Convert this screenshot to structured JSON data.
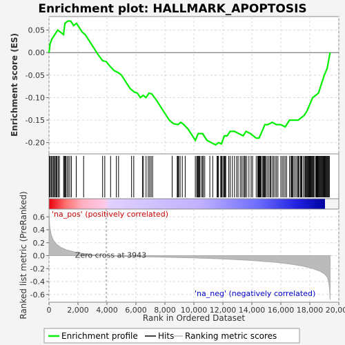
{
  "chart_data": {
    "type": "line",
    "title": "Enrichment plot: HALLMARK_APOPTOSIS",
    "xlabel": "Rank in Ordered Dataset",
    "es_ylabel": "Enrichment score (ES)",
    "metric_ylabel": "Ranked list metric (PreRanked)",
    "xlim": [
      0,
      20000
    ],
    "x_ticks": [
      0,
      2000,
      4000,
      6000,
      8000,
      10000,
      12000,
      14000,
      16000,
      18000,
      20000
    ],
    "x_tick_labels": [
      "0",
      "2,000",
      "4,000",
      "6,000",
      "8,000",
      "10,000",
      "12,000",
      "14,000",
      "16,000",
      "18,000",
      "20,000"
    ],
    "es_ylim": [
      -0.225,
      0.08
    ],
    "es_ticks": [
      0.05,
      0.0,
      -0.05,
      -0.1,
      -0.15,
      -0.2
    ],
    "es_tick_labels": [
      "0.05",
      "0.00",
      "-0.05",
      "-0.10",
      "-0.15",
      "-0.20"
    ],
    "metric_ylim": [
      -0.72,
      0.72
    ],
    "metric_ticks": [
      0.6,
      0.4,
      0.2,
      0.0,
      -0.2,
      -0.4,
      -0.6
    ],
    "metric_tick_labels": [
      "0.6",
      "0.4",
      "0.2",
      "0.0",
      "-0.2",
      "-0.4",
      "-0.6"
    ],
    "n_genes": 19400,
    "zero_cross": 3943,
    "zero_cross_label": "Zero cross at 3943",
    "pos_label": "'na_pos' (positively correlated)",
    "neg_label": "'na_neg' (negatively correlated)",
    "grid": true,
    "legend_position": "bottom",
    "legend": [
      "Enrichment profile",
      "Hits",
      "Ranking metric scores"
    ],
    "colors": {
      "es_line": "#00ee00",
      "hits": "#000000",
      "metric": "#bbbbbb",
      "pos_label": "#cc0000",
      "neg_label": "#0000cc"
    },
    "es_curve": {
      "x": [
        0,
        80,
        200,
        400,
        600,
        800,
        1000,
        1100,
        1300,
        1500,
        1700,
        1900,
        2100,
        2300,
        2500,
        2800,
        3100,
        3400,
        3700,
        3950,
        4200,
        4500,
        4800,
        5000,
        5300,
        5600,
        5900,
        6100,
        6300,
        6500,
        6700,
        6900,
        7100,
        7400,
        7700,
        8000,
        8300,
        8600,
        8900,
        9100,
        9300,
        9600,
        9900,
        10100,
        10300,
        10600,
        10900,
        11200,
        11500,
        11700,
        11900,
        12100,
        12300,
        12500,
        12800,
        13100,
        13400,
        13600,
        13900,
        14100,
        14300,
        14500,
        14700,
        14900,
        15100,
        15400,
        15700,
        16000,
        16300,
        16600,
        16800,
        17000,
        17200,
        17400,
        17600,
        17800,
        18000,
        18200,
        18400,
        18600,
        18800,
        19000,
        19200,
        19400
      ],
      "y": [
        0.0,
        0.02,
        0.03,
        0.04,
        0.05,
        0.045,
        0.04,
        0.065,
        0.07,
        0.07,
        0.06,
        0.065,
        0.055,
        0.045,
        0.04,
        0.025,
        0.01,
        -0.005,
        -0.018,
        -0.02,
        -0.03,
        -0.04,
        -0.045,
        -0.05,
        -0.065,
        -0.08,
        -0.088,
        -0.09,
        -0.1,
        -0.095,
        -0.1,
        -0.09,
        -0.092,
        -0.105,
        -0.12,
        -0.135,
        -0.15,
        -0.158,
        -0.16,
        -0.155,
        -0.16,
        -0.17,
        -0.185,
        -0.195,
        -0.18,
        -0.18,
        -0.195,
        -0.2,
        -0.205,
        -0.2,
        -0.203,
        -0.185,
        -0.185,
        -0.175,
        -0.175,
        -0.18,
        -0.185,
        -0.175,
        -0.18,
        -0.185,
        -0.19,
        -0.19,
        -0.175,
        -0.16,
        -0.16,
        -0.155,
        -0.16,
        -0.16,
        -0.165,
        -0.15,
        -0.15,
        -0.15,
        -0.15,
        -0.145,
        -0.14,
        -0.13,
        -0.115,
        -0.1,
        -0.095,
        -0.09,
        -0.07,
        -0.05,
        -0.035,
        0.0
      ]
    },
    "hits": [
      30,
      90,
      160,
      230,
      300,
      370,
      430,
      500,
      560,
      640,
      720,
      1010,
      1060,
      1110,
      1160,
      1250,
      1340,
      1440,
      1550,
      1880,
      2390,
      3700,
      3850,
      4250,
      4650,
      4800,
      5700,
      5850,
      6450,
      6520,
      6700,
      6850,
      6950,
      7050,
      7150,
      8500,
      8850,
      8900,
      8950,
      9050,
      9200,
      9400,
      10100,
      10200,
      10250,
      10300,
      10350,
      10400,
      10500,
      10600,
      10650,
      10750,
      11100,
      11300,
      11600,
      11650,
      11700,
      11850,
      11900,
      11950,
      12050,
      12100,
      12150,
      12200,
      12400,
      12500,
      12650,
      12800,
      12950,
      13050,
      13200,
      13300,
      13400,
      13500,
      13550,
      13650,
      13800,
      13950,
      14050,
      14300,
      14400,
      14450,
      14500,
      14550,
      14600,
      14650,
      14750,
      14800,
      14850,
      14900,
      14950,
      15050,
      15150,
      15250,
      15300,
      15400,
      15500,
      15600,
      15700,
      15800,
      16000,
      16100,
      16200,
      16300,
      16400,
      16600,
      16700,
      16750,
      16800,
      16850,
      16950,
      17050,
      17150,
      17200,
      17250,
      17350,
      17400,
      17450,
      17550,
      17650,
      17700,
      17750,
      17800,
      17850,
      17900,
      17950,
      18000,
      18050,
      18100,
      18150,
      18200,
      18250,
      18300,
      18400,
      18450,
      18500,
      18550,
      18600,
      18650,
      18700,
      18750,
      18800,
      18850,
      18900,
      18950,
      19000,
      19050,
      19100,
      19150,
      19200,
      19250,
      19300,
      19350
    ],
    "metric_curve": {
      "x": [
        0,
        50,
        150,
        300,
        500,
        800,
        1200,
        1700,
        2300,
        3000,
        3943,
        5000,
        6000,
        8000,
        10000,
        12000,
        14000,
        15500,
        16500,
        17500,
        18200,
        18700,
        19000,
        19200,
        19300,
        19360,
        19400
      ],
      "y": [
        0.72,
        0.45,
        0.32,
        0.24,
        0.18,
        0.13,
        0.09,
        0.06,
        0.035,
        0.015,
        0.0,
        -0.01,
        -0.015,
        -0.025,
        -0.035,
        -0.05,
        -0.075,
        -0.1,
        -0.125,
        -0.16,
        -0.2,
        -0.24,
        -0.28,
        -0.33,
        -0.4,
        -0.5,
        -0.68
      ]
    }
  }
}
